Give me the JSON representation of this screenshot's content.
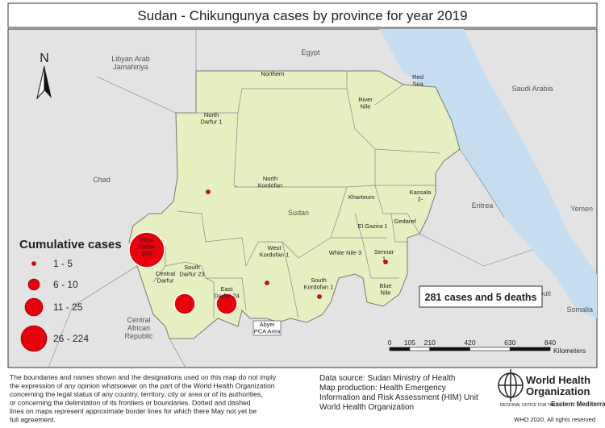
{
  "title": "Sudan - Chikungunya cases by province for year 2019",
  "countries": [
    {
      "lines": [
        "Libyan Arab",
        "Jamahiriya"
      ]
    },
    {
      "lines": [
        "Egypt"
      ]
    },
    {
      "lines": [
        "Saudi Arabia"
      ]
    },
    {
      "lines": [
        "Chad"
      ]
    },
    {
      "lines": [
        "Eritrea"
      ]
    },
    {
      "lines": [
        "Yemen"
      ]
    },
    {
      "lines": [
        "Djibouti"
      ]
    },
    {
      "lines": [
        "Somalia"
      ]
    },
    {
      "lines": [
        "Central",
        "African",
        "Republic"
      ]
    },
    {
      "lines": [
        "Sudan"
      ]
    }
  ],
  "provinces": [
    {
      "lines": [
        "Northern"
      ]
    },
    {
      "lines": [
        "Red",
        "Sea"
      ]
    },
    {
      "lines": [
        "River",
        "Nile"
      ]
    },
    {
      "lines": [
        "North",
        "Darfur 1"
      ],
      "cases": 1
    },
    {
      "lines": [
        "North",
        "Kordofan"
      ]
    },
    {
      "lines": [
        "Khartoum"
      ]
    },
    {
      "lines": [
        "Kassala",
        "2-"
      ]
    },
    {
      "lines": [
        "El Gazira 1"
      ]
    },
    {
      "lines": [
        "Gedaref"
      ]
    },
    {
      "lines": [
        "White Nile 3"
      ]
    },
    {
      "lines": [
        "Sennar",
        "1"
      ],
      "cases": 1
    },
    {
      "lines": [
        "Blue",
        "Nile"
      ]
    },
    {
      "lines": [
        "West",
        "Darfur",
        "224"
      ],
      "cases": 224
    },
    {
      "lines": [
        "Central",
        "Darfur"
      ]
    },
    {
      "lines": [
        "South",
        "Darfur 23"
      ],
      "cases": 23
    },
    {
      "lines": [
        "East",
        "Darfur 24"
      ],
      "cases": 24
    },
    {
      "lines": [
        "West",
        "Kordofan 1"
      ],
      "cases": 1
    },
    {
      "lines": [
        "South",
        "Kordofan 1"
      ],
      "cases": 1
    },
    {
      "lines": [
        "Abyei",
        "PCA Area"
      ]
    }
  ],
  "north_arrow": "N",
  "legend": {
    "title": "Cumulative cases",
    "classes": [
      {
        "label": "1 - 5",
        "min": 1,
        "max": 5
      },
      {
        "label": "6 - 10",
        "min": 6,
        "max": 10
      },
      {
        "label": "11 - 25",
        "min": 11,
        "max": 25
      },
      {
        "label": "26 - 224",
        "min": 26,
        "max": 224
      }
    ]
  },
  "summary": "281 cases and 5 deaths",
  "scale": {
    "ticks": [
      0,
      105,
      210,
      420,
      630,
      840
    ],
    "unit": "Kilometers"
  },
  "disclaimer": [
    "The boundaries and names shown and the designations used on this map do not imply",
    "the expression of any opinion whatsoever on the part of the World Health Organization",
    "concerning the legal status of any country, territory, city or area or of its authorities,",
    "or concerning the delimitation of its frontiers or boundaries. Dotted and dashed",
    "lines on maps represent approximate border lines for which there May not yet be",
    "full agreement."
  ],
  "source": [
    "Data source: Sudan Ministry of Health",
    "Map production: Health Emergency",
    "Information and Risk Assessment (HIM) Unit",
    "World Health Organization"
  ],
  "logo": [
    "World Health",
    "Organization",
    "REGIONAL OFFICE FOR THE",
    "Eastern Mediterranean"
  ],
  "copyright": "WHO 2020. All rights reserved"
}
